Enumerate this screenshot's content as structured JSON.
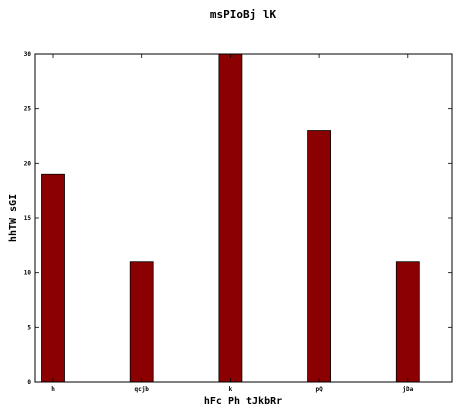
{
  "chart_data": {
    "type": "bar",
    "title": "msPIoBj lK",
    "xlabel": "hFc Ph tJkbRr",
    "ylabel": "hhTW sGI",
    "categories": [
      "h",
      "qcjb",
      "k",
      "pQ",
      "jDa"
    ],
    "values": [
      19,
      11,
      30,
      23,
      11
    ],
    "ylim": [
      0,
      30
    ],
    "yticks": [
      0,
      5,
      10,
      15,
      20,
      25,
      30
    ],
    "grid": false,
    "bar_color": "#8b0000"
  }
}
